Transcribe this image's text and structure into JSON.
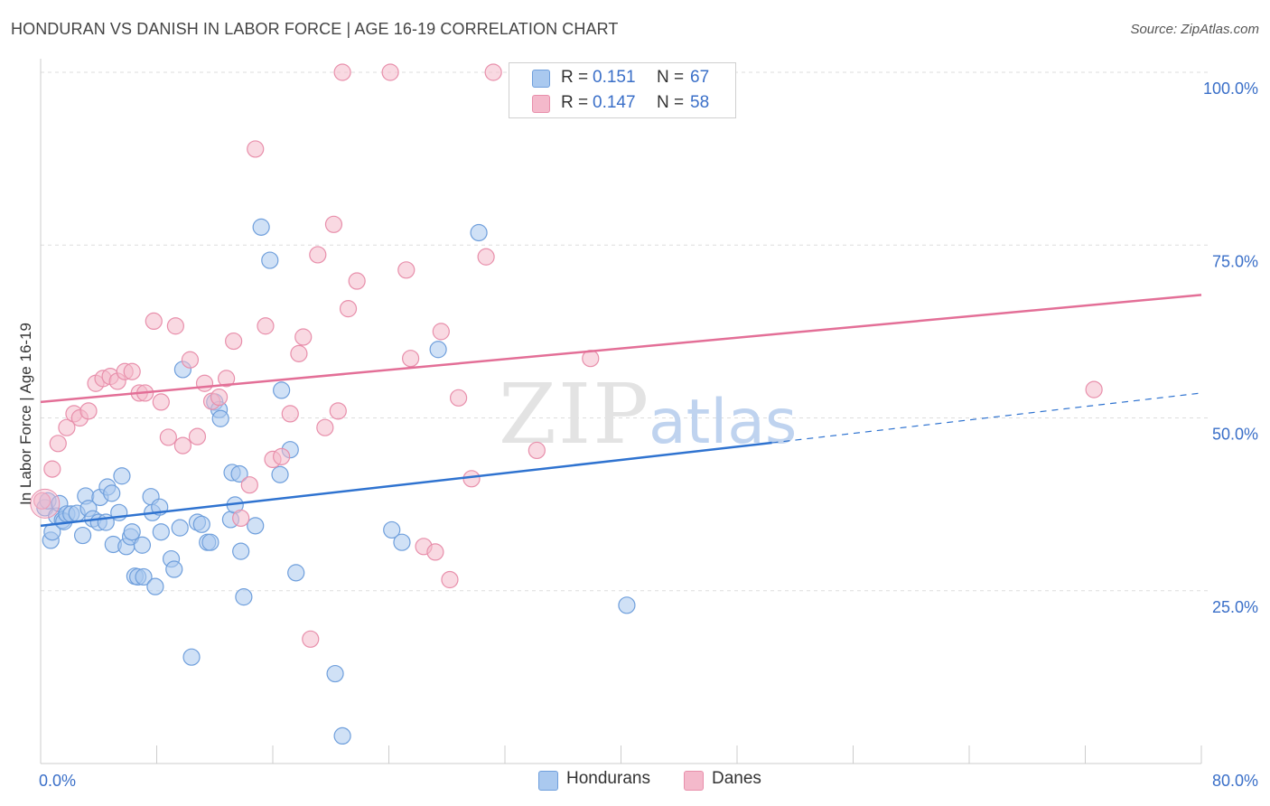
{
  "title": "HONDURAN VS DANISH IN LABOR FORCE | AGE 16-19 CORRELATION CHART",
  "source": "Source: ZipAtlas.com",
  "watermark": {
    "zip": "ZIP",
    "atlas": "atlas"
  },
  "colors": {
    "blue_fill": "#aac9ef",
    "blue_stroke": "#6f9fdc",
    "blue_line": "#2f73d0",
    "pink_fill": "#f4b9cb",
    "pink_stroke": "#e88fab",
    "pink_line": "#e36f97",
    "tick_label": "#3a6fc8",
    "grid": "#dddddd"
  },
  "legend": {
    "items": [
      {
        "r_label": "R =",
        "r_value": "0.151",
        "n_label": "N =",
        "n_value": "67",
        "color_key": "blue"
      },
      {
        "r_label": "R =",
        "r_value": "0.147",
        "n_label": "N =",
        "n_value": "58",
        "color_key": "pink"
      }
    ]
  },
  "bottom_legend": [
    {
      "label": "Hondurans",
      "color_key": "blue"
    },
    {
      "label": "Danes",
      "color_key": "pink"
    }
  ],
  "chart_data": {
    "type": "scatter",
    "xlabel": "",
    "ylabel": "In Labor Force | Age 16-19",
    "xlim": [
      0,
      80
    ],
    "ylim": [
      0,
      100
    ],
    "x_tick_labels": [
      {
        "value": 0,
        "label": "0.0%"
      },
      {
        "value": 80,
        "label": "80.0%"
      }
    ],
    "y_tick_labels": [
      {
        "value": 25,
        "label": "25.0%"
      },
      {
        "value": 50,
        "label": "50.0%"
      },
      {
        "value": 75,
        "label": "75.0%"
      },
      {
        "value": 100,
        "label": "100.0%"
      }
    ],
    "x_minor_ticks": [
      0,
      8,
      16,
      24,
      32,
      40,
      48,
      56,
      64,
      72,
      80
    ],
    "grid": true,
    "series": [
      {
        "name": "Hondurans",
        "color_key": "blue",
        "trend": {
          "x0": 0,
          "y0": 34.4,
          "x1": 50.4,
          "y1": 46.4,
          "x_dash_end": 80,
          "y_dash_end": 53.6
        },
        "points": [
          [
            0.3,
            37.0
          ],
          [
            0.5,
            38.0
          ],
          [
            0.7,
            32.3
          ],
          [
            0.8,
            33.5
          ],
          [
            1.1,
            35.8
          ],
          [
            1.3,
            37.6
          ],
          [
            1.5,
            35.2
          ],
          [
            1.6,
            35.0
          ],
          [
            1.8,
            36.1
          ],
          [
            2.1,
            36.1
          ],
          [
            2.5,
            36.2
          ],
          [
            2.9,
            33.0
          ],
          [
            3.1,
            38.7
          ],
          [
            3.3,
            36.9
          ],
          [
            3.6,
            35.4
          ],
          [
            4.0,
            34.9
          ],
          [
            4.1,
            38.5
          ],
          [
            4.5,
            34.9
          ],
          [
            4.6,
            40.0
          ],
          [
            4.9,
            39.1
          ],
          [
            5.0,
            31.7
          ],
          [
            5.4,
            36.3
          ],
          [
            5.6,
            41.6
          ],
          [
            5.9,
            31.4
          ],
          [
            6.2,
            32.8
          ],
          [
            6.3,
            33.5
          ],
          [
            6.5,
            27.1
          ],
          [
            6.7,
            27.0
          ],
          [
            7.0,
            31.6
          ],
          [
            7.1,
            27.0
          ],
          [
            7.6,
            38.6
          ],
          [
            7.7,
            36.3
          ],
          [
            7.9,
            25.6
          ],
          [
            8.2,
            37.1
          ],
          [
            8.3,
            33.5
          ],
          [
            9.0,
            29.6
          ],
          [
            9.2,
            28.1
          ],
          [
            9.6,
            34.1
          ],
          [
            9.8,
            57.0
          ],
          [
            10.4,
            15.4
          ],
          [
            10.8,
            34.9
          ],
          [
            11.1,
            34.6
          ],
          [
            11.5,
            32.0
          ],
          [
            11.7,
            32.0
          ],
          [
            12.0,
            52.3
          ],
          [
            12.3,
            51.2
          ],
          [
            12.4,
            49.9
          ],
          [
            13.1,
            35.3
          ],
          [
            13.2,
            42.1
          ],
          [
            13.4,
            37.4
          ],
          [
            13.7,
            41.9
          ],
          [
            13.8,
            30.7
          ],
          [
            14.0,
            24.1
          ],
          [
            14.8,
            34.4
          ],
          [
            15.2,
            77.6
          ],
          [
            15.8,
            72.8
          ],
          [
            16.5,
            41.8
          ],
          [
            16.6,
            54.0
          ],
          [
            17.2,
            45.4
          ],
          [
            17.6,
            27.6
          ],
          [
            20.3,
            13.0
          ],
          [
            20.8,
            4.0
          ],
          [
            24.2,
            33.8
          ],
          [
            24.9,
            32.0
          ],
          [
            27.4,
            59.9
          ],
          [
            30.2,
            76.8
          ],
          [
            40.4,
            22.9
          ]
        ]
      },
      {
        "name": "Danes",
        "color_key": "pink",
        "trend": {
          "x0": 0,
          "y0": 52.3,
          "x1": 80,
          "y1": 67.8
        },
        "points": [
          [
            0.1,
            38.0
          ],
          [
            0.8,
            42.6
          ],
          [
            1.2,
            46.3
          ],
          [
            1.8,
            48.6
          ],
          [
            2.3,
            50.6
          ],
          [
            2.7,
            50.0
          ],
          [
            3.3,
            51.0
          ],
          [
            3.8,
            55.0
          ],
          [
            4.3,
            55.7
          ],
          [
            4.8,
            56.0
          ],
          [
            5.3,
            55.3
          ],
          [
            5.8,
            56.7
          ],
          [
            6.3,
            56.7
          ],
          [
            6.8,
            53.6
          ],
          [
            7.2,
            53.6
          ],
          [
            7.8,
            64.0
          ],
          [
            8.3,
            52.3
          ],
          [
            8.8,
            47.2
          ],
          [
            9.3,
            63.3
          ],
          [
            9.8,
            46.0
          ],
          [
            10.3,
            58.4
          ],
          [
            10.8,
            47.3
          ],
          [
            11.3,
            55.0
          ],
          [
            11.8,
            52.4
          ],
          [
            12.3,
            53.0
          ],
          [
            12.8,
            55.7
          ],
          [
            13.3,
            61.1
          ],
          [
            13.8,
            35.5
          ],
          [
            14.4,
            40.3
          ],
          [
            14.8,
            88.9
          ],
          [
            15.5,
            63.3
          ],
          [
            16.0,
            44.0
          ],
          [
            16.6,
            44.4
          ],
          [
            17.2,
            50.6
          ],
          [
            17.8,
            59.3
          ],
          [
            18.1,
            61.7
          ],
          [
            18.6,
            18.0
          ],
          [
            19.1,
            73.6
          ],
          [
            19.6,
            48.6
          ],
          [
            20.2,
            78.0
          ],
          [
            20.5,
            51.0
          ],
          [
            20.8,
            100.0
          ],
          [
            21.2,
            65.8
          ],
          [
            21.8,
            69.8
          ],
          [
            24.1,
            100.0
          ],
          [
            25.2,
            71.4
          ],
          [
            25.5,
            58.6
          ],
          [
            26.4,
            31.4
          ],
          [
            27.2,
            30.6
          ],
          [
            27.6,
            62.5
          ],
          [
            28.2,
            26.6
          ],
          [
            28.8,
            52.9
          ],
          [
            29.7,
            41.2
          ],
          [
            30.7,
            73.3
          ],
          [
            31.2,
            100.0
          ],
          [
            34.2,
            45.3
          ],
          [
            37.9,
            58.6
          ],
          [
            72.6,
            54.1
          ]
        ]
      }
    ]
  }
}
